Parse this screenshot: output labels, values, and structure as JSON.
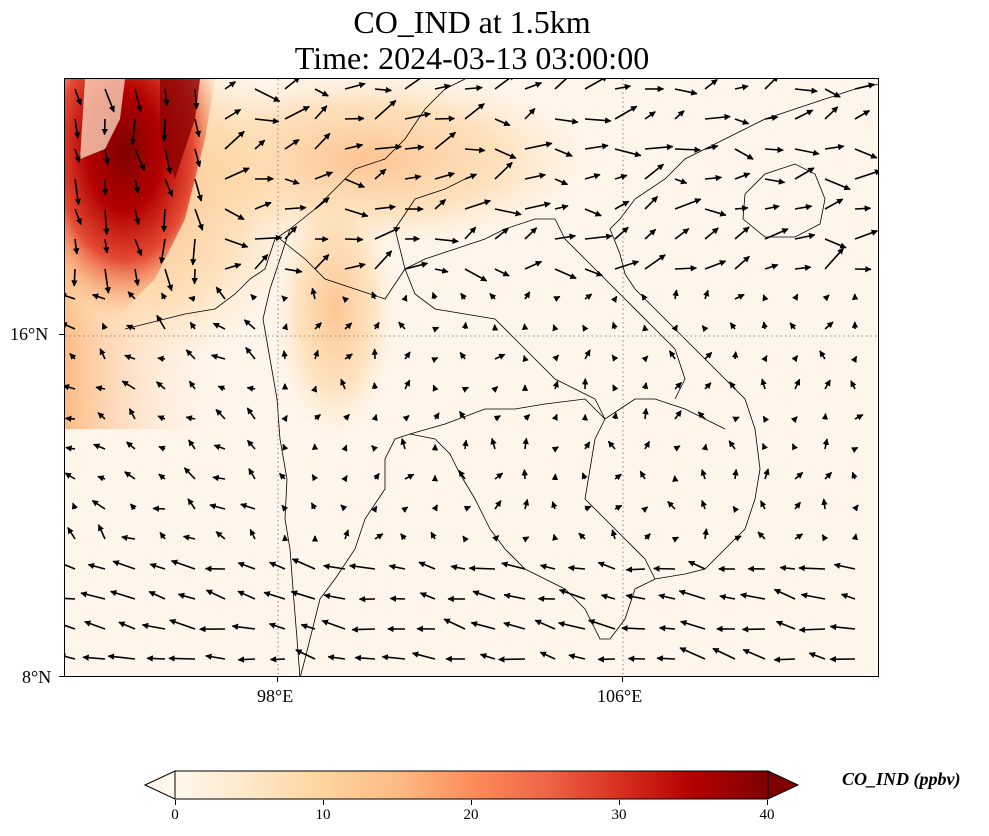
{
  "figure": {
    "title_line1": "CO_IND at 1.5km",
    "title_line2": "Time: 2024-03-13 03:00:00"
  },
  "map": {
    "projection": "PlateCarree",
    "variable": "CO_IND",
    "height_label": "1.5km",
    "time": "2024-03-13 03:00:00",
    "lon_range": [
      93.0,
      111.9
    ],
    "lat_range": [
      8.0,
      21.9
    ],
    "gridline_style": "dotted",
    "gridline_lons": [
      98,
      106
    ],
    "gridline_lats": [
      8,
      16
    ],
    "lon_labels": [
      {
        "value": 98,
        "text": "98°E"
      },
      {
        "value": 106,
        "text": "106°E"
      }
    ],
    "lat_labels": [
      {
        "value": 16,
        "text": "16°N"
      },
      {
        "value": 8,
        "text": "8°N"
      }
    ],
    "features": [
      "coastlines",
      "country borders",
      "wind vectors"
    ],
    "colors": {
      "background": "#fef3e6",
      "low": "#fff5eb",
      "mid": "#fdae6b",
      "high": "#7f0000",
      "coastline": "#000000",
      "gridline": "#7a6a5a",
      "vector": "#000000"
    }
  },
  "colorbar": {
    "label": "CO_IND (ppbv)",
    "cmap": "OrRd",
    "vmin": 0,
    "vmax": 40,
    "extend": "both",
    "ticks": [
      {
        "value": 0,
        "text": "0"
      },
      {
        "value": 10,
        "text": "10"
      },
      {
        "value": 20,
        "text": "20"
      },
      {
        "value": 30,
        "text": "30"
      },
      {
        "value": 40,
        "text": "40"
      }
    ],
    "stops": [
      "#fff7ec",
      "#fee8c8",
      "#fdd49e",
      "#fdbb84",
      "#fc8d59",
      "#ef6548",
      "#d7301f",
      "#b30000",
      "#7f0000"
    ]
  }
}
